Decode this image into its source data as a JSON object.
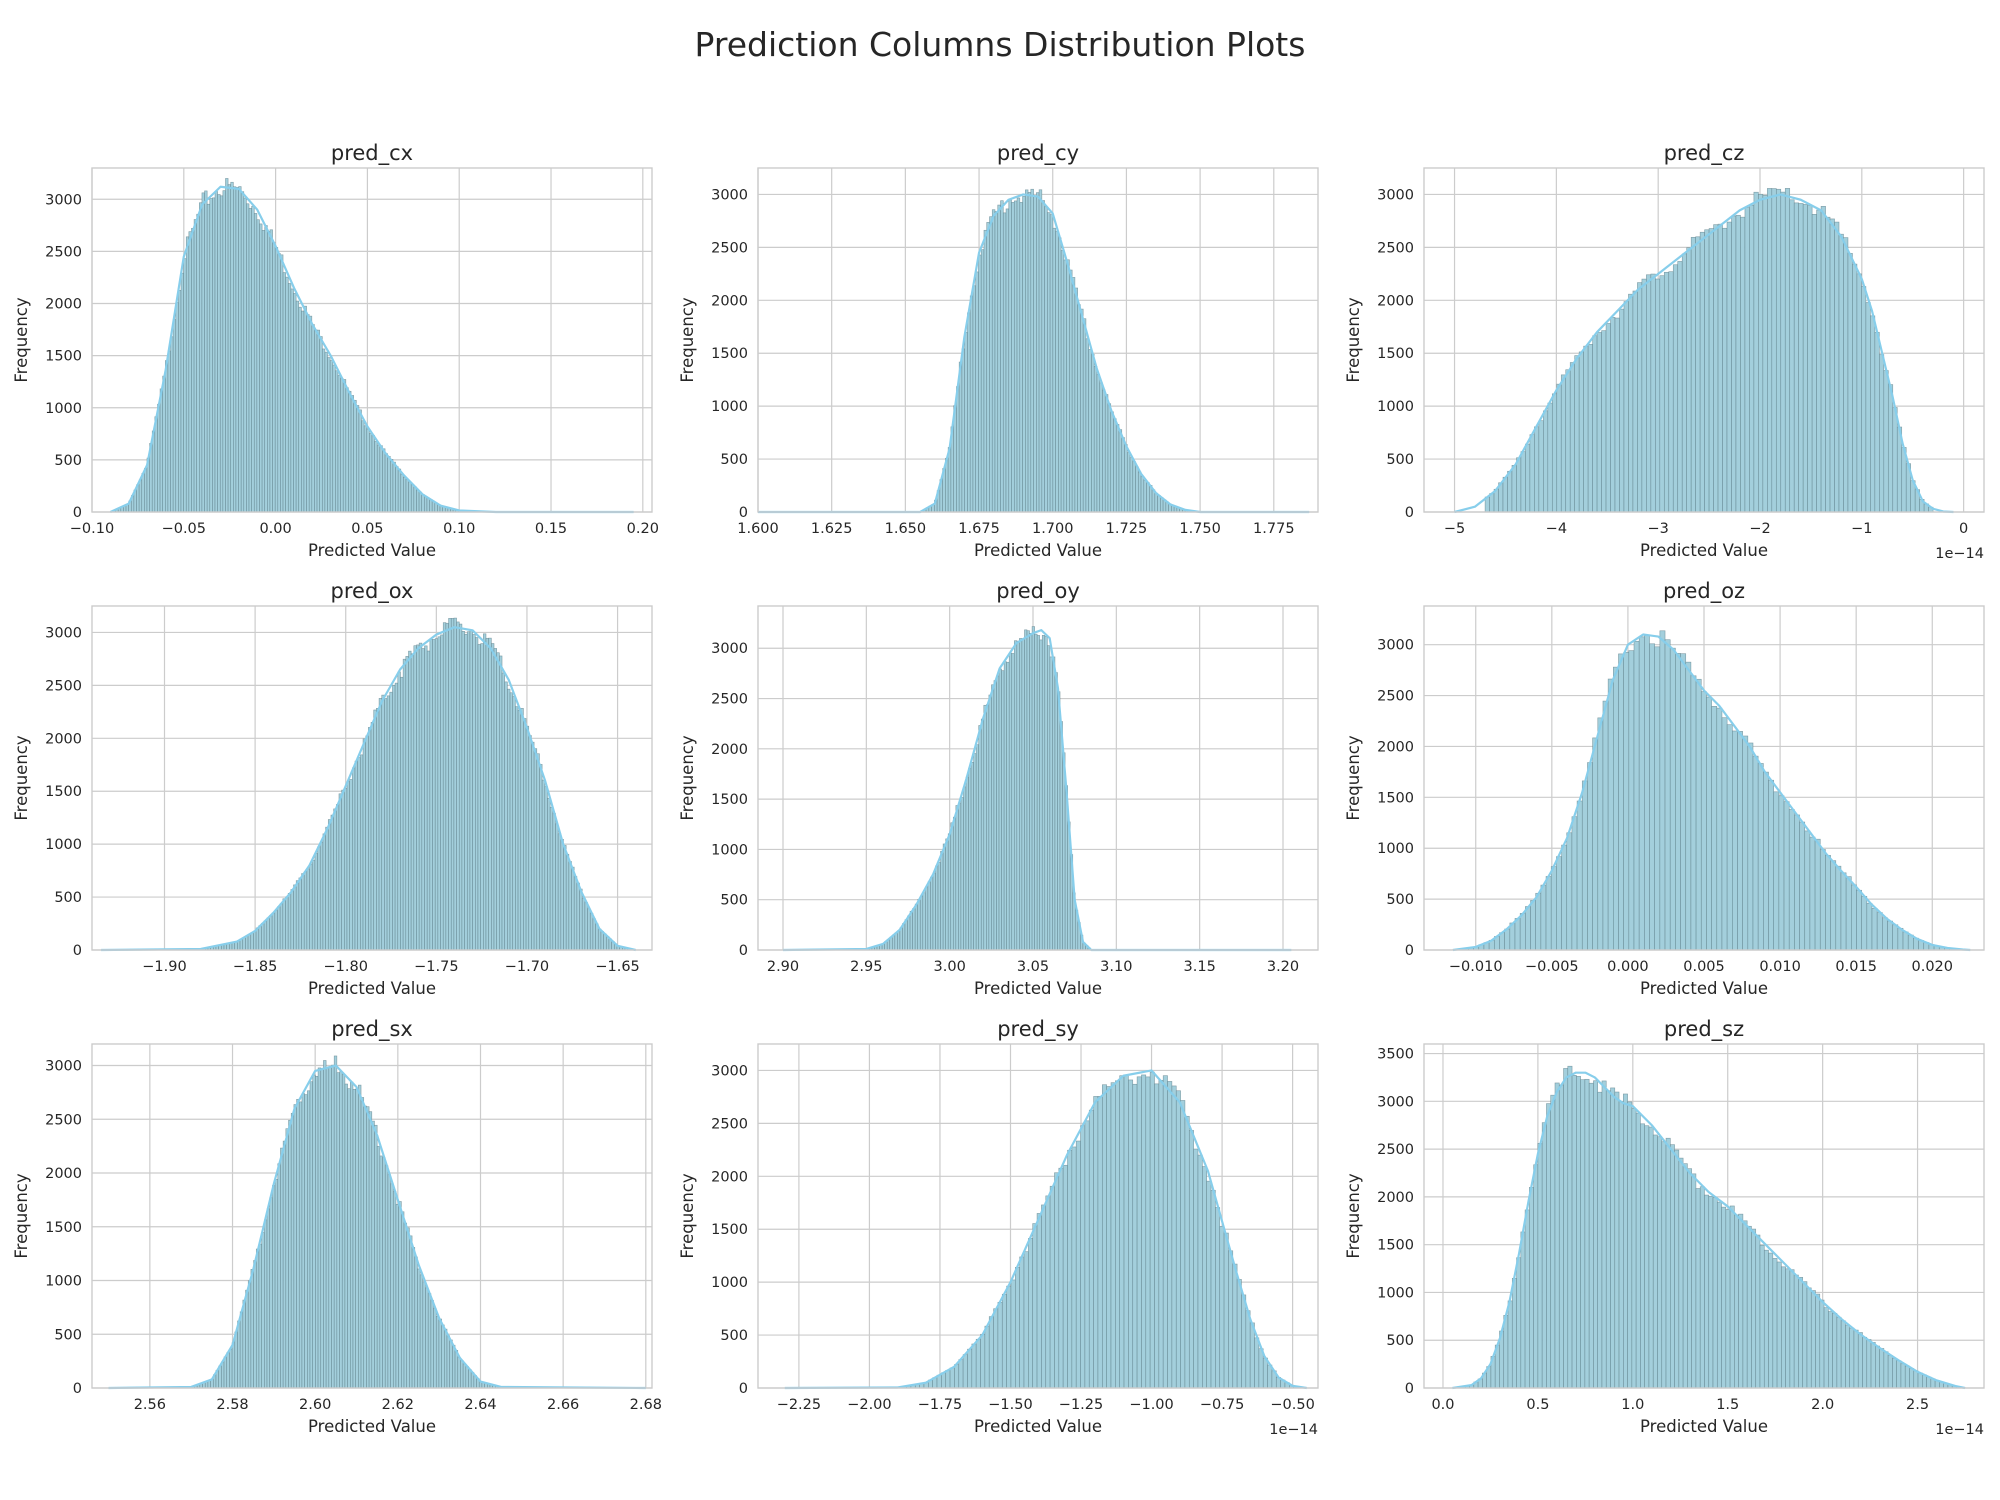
{
  "figure": {
    "title": "Prediction Columns Distribution Plots"
  },
  "style": {
    "bar_fill": "#a3cfdc",
    "bar_stroke": "#5b7d88",
    "kde_color": "#87ceeb",
    "grid_color": "#cccccc",
    "spine_color": "#cccccc",
    "text_color": "#262626"
  },
  "chart_data": [
    {
      "type": "histogram",
      "title": "pred_cx",
      "xlabel": "Predicted Value",
      "ylabel": "Frequency",
      "xlim": [
        -0.1,
        0.205
      ],
      "ylim": [
        0,
        3300
      ],
      "xticks": [
        -0.1,
        -0.05,
        0.0,
        0.05,
        0.1,
        0.15,
        0.2
      ],
      "xtick_labels": [
        "−0.10",
        "−0.05",
        "0.00",
        "0.05",
        "0.10",
        "0.15",
        "0.20"
      ],
      "yticks": [
        0,
        500,
        1000,
        1500,
        2000,
        2500,
        3000
      ],
      "offset_text": "",
      "bin_range": [
        -0.09,
        0.195
      ],
      "bins": 200,
      "density": {
        "x": [
          -0.09,
          -0.08,
          -0.07,
          -0.06,
          -0.05,
          -0.04,
          -0.03,
          -0.02,
          -0.01,
          0.0,
          0.01,
          0.02,
          0.03,
          0.04,
          0.05,
          0.06,
          0.07,
          0.08,
          0.09,
          0.1,
          0.12,
          0.195
        ],
        "y": [
          0,
          80,
          450,
          1350,
          2450,
          2950,
          3120,
          3100,
          2900,
          2550,
          2150,
          1800,
          1500,
          1150,
          820,
          560,
          350,
          170,
          60,
          15,
          0,
          0
        ]
      }
    },
    {
      "type": "histogram",
      "title": "pred_cy",
      "xlabel": "Predicted Value",
      "ylabel": "Frequency",
      "xlim": [
        1.6,
        1.79
      ],
      "ylim": [
        0,
        3250
      ],
      "xticks": [
        1.6,
        1.625,
        1.65,
        1.675,
        1.7,
        1.725,
        1.75,
        1.775
      ],
      "xtick_labels": [
        "1.600",
        "1.625",
        "1.650",
        "1.675",
        "1.700",
        "1.725",
        "1.750",
        "1.775"
      ],
      "yticks": [
        0,
        500,
        1000,
        1500,
        2000,
        2500,
        3000
      ],
      "offset_text": "",
      "bin_range": [
        1.6,
        1.787
      ],
      "bins": 200,
      "density": {
        "x": [
          1.6,
          1.655,
          1.66,
          1.665,
          1.67,
          1.675,
          1.68,
          1.685,
          1.69,
          1.695,
          1.7,
          1.705,
          1.71,
          1.715,
          1.72,
          1.725,
          1.73,
          1.735,
          1.74,
          1.745,
          1.75,
          1.787
        ],
        "y": [
          0,
          0,
          80,
          600,
          1650,
          2450,
          2800,
          2950,
          3000,
          2980,
          2820,
          2350,
          1850,
          1350,
          950,
          620,
          360,
          180,
          70,
          20,
          0,
          0
        ]
      }
    },
    {
      "type": "histogram",
      "title": "pred_cz",
      "xlabel": "Predicted Value",
      "ylabel": "Frequency",
      "xlim": [
        -5.3,
        0.2
      ],
      "ylim": [
        0,
        3250
      ],
      "xticks": [
        -5,
        -4,
        -3,
        -2,
        -1,
        0
      ],
      "xtick_labels": [
        "−5",
        "−4",
        "−3",
        "−2",
        "−1",
        "0"
      ],
      "yticks": [
        0,
        500,
        1000,
        1500,
        2000,
        2500,
        3000
      ],
      "offset_text": "1e−14",
      "bin_range": [
        -4.7,
        -0.3
      ],
      "bins": 100,
      "density": {
        "x": [
          -5.0,
          -4.8,
          -4.6,
          -4.4,
          -4.2,
          -4.0,
          -3.8,
          -3.6,
          -3.4,
          -3.2,
          -3.0,
          -2.8,
          -2.6,
          -2.4,
          -2.2,
          -2.0,
          -1.8,
          -1.6,
          -1.4,
          -1.2,
          -1.0,
          -0.9,
          -0.8,
          -0.7,
          -0.6,
          -0.5,
          -0.4,
          -0.3,
          -0.2,
          -0.1
        ],
        "y": [
          0,
          50,
          200,
          450,
          800,
          1150,
          1450,
          1700,
          1900,
          2100,
          2250,
          2400,
          2550,
          2700,
          2850,
          2950,
          3000,
          2950,
          2850,
          2600,
          2200,
          1900,
          1500,
          1100,
          650,
          300,
          100,
          30,
          5,
          0
        ]
      }
    },
    {
      "type": "histogram",
      "title": "pred_ox",
      "xlabel": "Predicted Value",
      "ylabel": "Frequency",
      "xlim": [
        -1.94,
        -1.631
      ],
      "ylim": [
        0,
        3250
      ],
      "xticks": [
        -1.9,
        -1.85,
        -1.8,
        -1.75,
        -1.7,
        -1.65
      ],
      "xtick_labels": [
        "−1.90",
        "−1.85",
        "−1.80",
        "−1.75",
        "−1.70",
        "−1.65"
      ],
      "yticks": [
        0,
        500,
        1000,
        1500,
        2000,
        2500,
        3000
      ],
      "offset_text": "",
      "bin_range": [
        -1.935,
        -1.64
      ],
      "bins": 200,
      "density": {
        "x": [
          -1.935,
          -1.88,
          -1.86,
          -1.85,
          -1.84,
          -1.83,
          -1.82,
          -1.81,
          -1.8,
          -1.79,
          -1.78,
          -1.77,
          -1.76,
          -1.75,
          -1.74,
          -1.73,
          -1.72,
          -1.71,
          -1.7,
          -1.69,
          -1.68,
          -1.67,
          -1.66,
          -1.65,
          -1.64
        ],
        "y": [
          0,
          10,
          80,
          180,
          350,
          550,
          800,
          1150,
          1550,
          1950,
          2350,
          2650,
          2850,
          2980,
          3050,
          3020,
          2850,
          2550,
          2100,
          1600,
          1000,
          550,
          200,
          40,
          0
        ]
      }
    },
    {
      "type": "histogram",
      "title": "pred_oy",
      "xlabel": "Predicted Value",
      "ylabel": "Frequency",
      "xlim": [
        2.885,
        3.221
      ],
      "ylim": [
        0,
        3420
      ],
      "xticks": [
        2.9,
        2.95,
        3.0,
        3.05,
        3.1,
        3.15,
        3.2
      ],
      "xtick_labels": [
        "2.90",
        "2.95",
        "3.00",
        "3.05",
        "3.10",
        "3.15",
        "3.20"
      ],
      "yticks": [
        0,
        500,
        1000,
        1500,
        2000,
        2500,
        3000
      ],
      "offset_text": "",
      "bin_range": [
        2.9,
        3.205
      ],
      "bins": 200,
      "density": {
        "x": [
          2.9,
          2.95,
          2.96,
          2.97,
          2.98,
          2.99,
          3.0,
          3.01,
          3.02,
          3.03,
          3.04,
          3.05,
          3.055,
          3.06,
          3.065,
          3.07,
          3.075,
          3.08,
          3.085,
          3.205
        ],
        "y": [
          0,
          10,
          60,
          200,
          450,
          750,
          1150,
          1700,
          2300,
          2800,
          3050,
          3150,
          3180,
          3100,
          2600,
          1600,
          500,
          80,
          0,
          0
        ]
      }
    },
    {
      "type": "histogram",
      "title": "pred_oz",
      "xlabel": "Predicted Value",
      "ylabel": "Frequency",
      "xlim": [
        -0.0134,
        0.0234
      ],
      "ylim": [
        0,
        3380
      ],
      "xticks": [
        -0.01,
        -0.005,
        0.0,
        0.005,
        0.01,
        0.015,
        0.02
      ],
      "xtick_labels": [
        "−0.010",
        "−0.005",
        "0.000",
        "0.005",
        "0.010",
        "0.015",
        "0.020"
      ],
      "yticks": [
        0,
        500,
        1000,
        1500,
        2000,
        2500,
        3000
      ],
      "offset_text": "",
      "bin_range": [
        -0.0115,
        0.0225
      ],
      "bins": 100,
      "density": {
        "x": [
          -0.0115,
          -0.01,
          -0.009,
          -0.008,
          -0.007,
          -0.006,
          -0.005,
          -0.004,
          -0.003,
          -0.002,
          -0.001,
          0.0,
          0.001,
          0.002,
          0.003,
          0.004,
          0.005,
          0.006,
          0.007,
          0.008,
          0.009,
          0.01,
          0.011,
          0.012,
          0.013,
          0.014,
          0.015,
          0.016,
          0.017,
          0.018,
          0.019,
          0.02,
          0.021,
          0.022,
          0.0225
        ],
        "y": [
          0,
          30,
          90,
          200,
          340,
          520,
          780,
          1100,
          1550,
          2100,
          2650,
          3000,
          3100,
          3080,
          2950,
          2750,
          2550,
          2400,
          2200,
          2000,
          1750,
          1550,
          1350,
          1150,
          950,
          780,
          620,
          450,
          310,
          200,
          110,
          50,
          20,
          5,
          0
        ]
      }
    },
    {
      "type": "histogram",
      "title": "pred_sx",
      "xlabel": "Predicted Value",
      "ylabel": "Frequency",
      "xlim": [
        2.546,
        2.6815
      ],
      "ylim": [
        0,
        3200
      ],
      "xticks": [
        2.56,
        2.58,
        2.6,
        2.62,
        2.64,
        2.66,
        2.68
      ],
      "xtick_labels": [
        "2.56",
        "2.58",
        "2.60",
        "2.62",
        "2.64",
        "2.66",
        "2.68"
      ],
      "yticks": [
        0,
        500,
        1000,
        1500,
        2000,
        2500,
        3000
      ],
      "offset_text": "",
      "bin_range": [
        2.55,
        2.68
      ],
      "bins": 200,
      "density": {
        "x": [
          2.55,
          2.57,
          2.575,
          2.58,
          2.585,
          2.59,
          2.595,
          2.6,
          2.605,
          2.61,
          2.615,
          2.62,
          2.625,
          2.63,
          2.635,
          2.64,
          2.645,
          2.68
        ],
        "y": [
          0,
          10,
          80,
          400,
          1100,
          1900,
          2600,
          2950,
          3000,
          2800,
          2350,
          1750,
          1150,
          650,
          280,
          60,
          10,
          0
        ]
      }
    },
    {
      "type": "histogram",
      "title": "pred_sy",
      "xlabel": "Predicted Value",
      "ylabel": "Frequency",
      "xlim": [
        -2.395,
        -0.41
      ],
      "ylim": [
        0,
        3250
      ],
      "xticks": [
        -2.25,
        -2.0,
        -1.75,
        -1.5,
        -1.25,
        -1.0,
        -0.75,
        -0.5
      ],
      "xtick_labels": [
        "−2.25",
        "−2.00",
        "−1.75",
        "−1.50",
        "−1.25",
        "−1.00",
        "−0.75",
        "−0.50"
      ],
      "yticks": [
        0,
        500,
        1000,
        1500,
        2000,
        2500,
        3000
      ],
      "offset_text": "1e−14",
      "bin_range": [
        -2.3,
        -0.45
      ],
      "bins": 120,
      "density": {
        "x": [
          -2.3,
          -1.9,
          -1.8,
          -1.7,
          -1.6,
          -1.5,
          -1.4,
          -1.3,
          -1.2,
          -1.1,
          -1.0,
          -0.9,
          -0.8,
          -0.7,
          -0.65,
          -0.6,
          -0.55,
          -0.5,
          -0.45
        ],
        "y": [
          0,
          5,
          50,
          200,
          500,
          1000,
          1600,
          2200,
          2700,
          2950,
          3000,
          2700,
          2050,
          1100,
          650,
          300,
          100,
          20,
          0
        ]
      }
    },
    {
      "type": "histogram",
      "title": "pred_sz",
      "xlabel": "Predicted Value",
      "ylabel": "Frequency",
      "xlim": [
        -0.1,
        2.85
      ],
      "ylim": [
        0,
        3600
      ],
      "xticks": [
        0.0,
        0.5,
        1.0,
        1.5,
        2.0,
        2.5
      ],
      "xtick_labels": [
        "0.0",
        "0.5",
        "1.0",
        "1.5",
        "2.0",
        "2.5"
      ],
      "yticks": [
        0,
        500,
        1000,
        1500,
        2000,
        2500,
        3000,
        3500
      ],
      "offset_text": "1e−14",
      "bin_range": [
        0.05,
        2.75
      ],
      "bins": 120,
      "density": {
        "x": [
          0.05,
          0.15,
          0.2,
          0.25,
          0.3,
          0.35,
          0.4,
          0.45,
          0.5,
          0.55,
          0.6,
          0.65,
          0.7,
          0.75,
          0.8,
          0.85,
          0.9,
          0.95,
          1.0,
          1.1,
          1.2,
          1.3,
          1.4,
          1.5,
          1.6,
          1.7,
          1.8,
          1.9,
          2.0,
          2.1,
          2.2,
          2.3,
          2.4,
          2.5,
          2.6,
          2.7,
          2.75
        ],
        "y": [
          0,
          30,
          100,
          250,
          520,
          900,
          1400,
          1950,
          2450,
          2850,
          3100,
          3250,
          3300,
          3300,
          3250,
          3150,
          3050,
          2980,
          2950,
          2750,
          2500,
          2250,
          2050,
          1900,
          1700,
          1500,
          1300,
          1100,
          900,
          720,
          560,
          420,
          290,
          170,
          80,
          20,
          0
        ]
      }
    }
  ]
}
